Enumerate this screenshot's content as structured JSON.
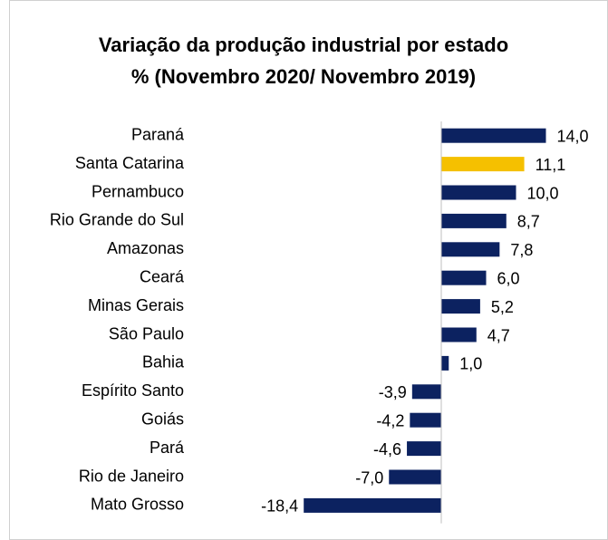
{
  "chart_data": {
    "type": "hbar",
    "title": "Variação da produção industrial por estado",
    "subtitle": "% (Novembro 2020/ Novembro 2019)",
    "categories": [
      "Paraná",
      "Santa Catarina",
      "Pernambuco",
      "Rio Grande do Sul",
      "Amazonas",
      "Ceará",
      "Minas Gerais",
      "São Paulo",
      "Bahia",
      "Espírito Santo",
      "Goiás",
      "Pará",
      "Rio de Janeiro",
      "Mato Grosso"
    ],
    "values": [
      14.0,
      11.1,
      10.0,
      8.7,
      7.8,
      6.0,
      5.2,
      4.7,
      1.0,
      -3.9,
      -4.2,
      -4.6,
      -7.0,
      -18.4
    ],
    "value_labels": [
      "14,0",
      "11,1",
      "10,0",
      "8,7",
      "7,8",
      "6,0",
      "5,2",
      "4,7",
      "1,0",
      "-3,9",
      "-4,2",
      "-4,6",
      "-7,0",
      "-18,4"
    ],
    "colors": [
      "#0c2260",
      "#f5c000",
      "#0c2260",
      "#0c2260",
      "#0c2260",
      "#0c2260",
      "#0c2260",
      "#0c2260",
      "#0c2260",
      "#0c2260",
      "#0c2260",
      "#0c2260",
      "#0c2260",
      "#0c2260"
    ],
    "xlim": [
      -20,
      20
    ]
  }
}
